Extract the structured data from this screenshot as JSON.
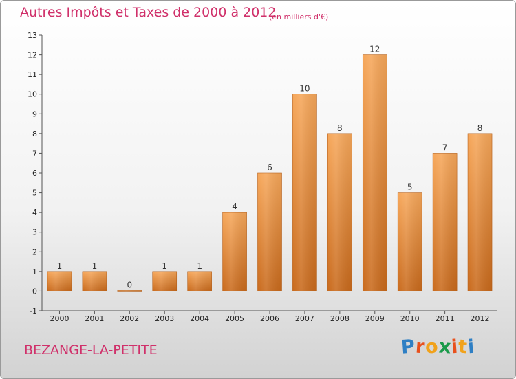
{
  "chart_data": {
    "type": "bar",
    "title": "Autres Impôts et Taxes de 2000 à 2012",
    "subtitle": "(en milliers d'€)",
    "categories": [
      "2000",
      "2001",
      "2002",
      "2003",
      "2004",
      "2005",
      "2006",
      "2007",
      "2008",
      "2009",
      "2010",
      "2011",
      "2012"
    ],
    "values": [
      1,
      1,
      0,
      1,
      1,
      4,
      6,
      10,
      8,
      12,
      5,
      7,
      8
    ],
    "data_labels": [
      "1",
      "1",
      "0",
      "1",
      "1",
      "4",
      "6",
      "10",
      "8",
      "12",
      "5",
      "7",
      "8"
    ],
    "y_ticks": [
      -1,
      0,
      1,
      2,
      3,
      4,
      5,
      6,
      7,
      8,
      9,
      10,
      11,
      12,
      13
    ],
    "ylim": [
      -1,
      13
    ],
    "grid": false,
    "legend": "none",
    "bar_color": "#e8893a"
  },
  "footer": {
    "city": "BEZANGE-LA-PETITE",
    "logo_letters": [
      {
        "ch": "P",
        "color": "#2e7fc4"
      },
      {
        "ch": "r",
        "color": "#e8501c"
      },
      {
        "ch": "o",
        "color": "#f1a21b"
      },
      {
        "ch": "x",
        "color": "#1a9a4a"
      },
      {
        "ch": "i",
        "color": "#e8501c"
      },
      {
        "ch": "t",
        "color": "#f1a21b"
      },
      {
        "ch": "i",
        "color": "#2e7fc4"
      }
    ]
  }
}
